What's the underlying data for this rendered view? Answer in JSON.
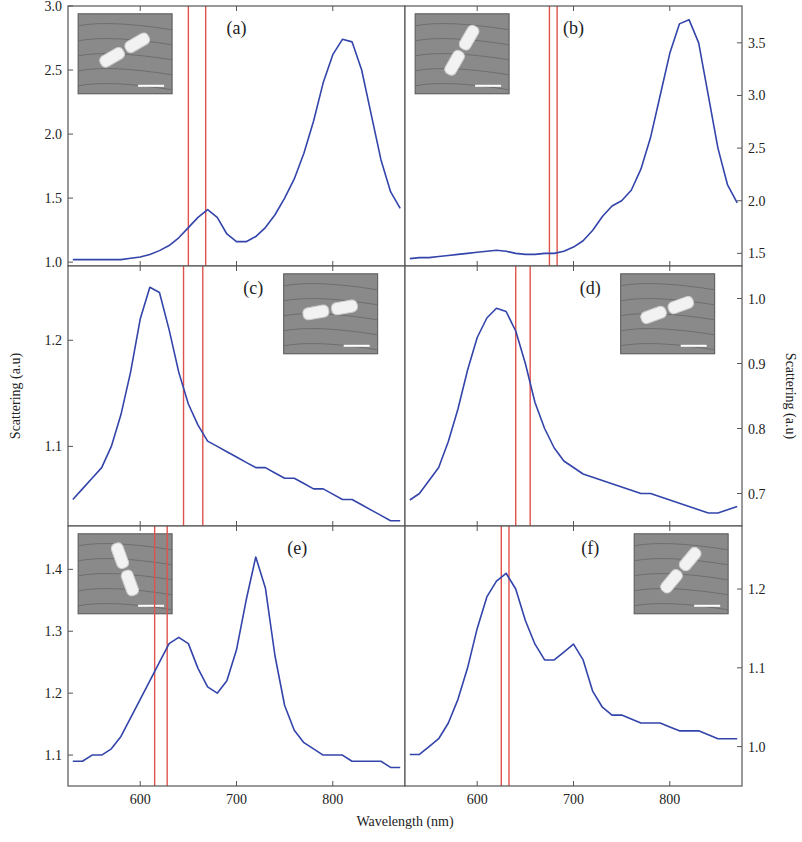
{
  "chart_data": [
    {
      "type": "line",
      "panel": "(a)",
      "grid": false,
      "tick_labels": "y",
      "xlim": [
        525,
        875
      ],
      "xticks": [
        600,
        700,
        800
      ],
      "ylim": [
        0.97,
        3.0
      ],
      "yticks": [
        {
          "value": 1,
          "label": "1.0"
        },
        1.5,
        {
          "value": 2,
          "label": "2.0"
        },
        2.5,
        {
          "value": 3,
          "label": "3.0"
        }
      ],
      "reference_lines": [
        650,
        668
      ],
      "x": [
        530,
        540,
        550,
        560,
        570,
        580,
        590,
        600,
        610,
        620,
        630,
        640,
        650,
        660,
        670,
        680,
        690,
        700,
        710,
        720,
        730,
        740,
        750,
        760,
        770,
        780,
        790,
        800,
        810,
        820,
        830,
        840,
        850,
        860,
        870
      ],
      "series": [
        {
          "color": "#3344aa",
          "values": [
            1.02,
            1.02,
            1.02,
            1.02,
            1.02,
            1.02,
            1.03,
            1.04,
            1.06,
            1.09,
            1.13,
            1.19,
            1.27,
            1.35,
            1.41,
            1.35,
            1.22,
            1.16,
            1.16,
            1.2,
            1.27,
            1.37,
            1.5,
            1.65,
            1.85,
            2.1,
            2.4,
            2.62,
            2.74,
            2.72,
            2.5,
            2.15,
            1.8,
            1.55,
            1.42
          ]
        }
      ]
    },
    {
      "type": "line",
      "panel": "(b)",
      "grid": false,
      "tick_labels": "y",
      "xlim": [
        525,
        875
      ],
      "xticks": [
        600,
        700,
        800
      ],
      "ylim": [
        1.38,
        3.85
      ],
      "yticks": [
        1.5,
        {
          "value": 2,
          "label": "2.0"
        },
        2.5,
        {
          "value": 3,
          "label": "3.0"
        },
        3.5
      ],
      "reference_lines": [
        675,
        683
      ],
      "x": [
        530,
        540,
        550,
        560,
        570,
        580,
        590,
        600,
        610,
        620,
        630,
        640,
        650,
        660,
        670,
        680,
        690,
        700,
        710,
        720,
        730,
        740,
        750,
        760,
        770,
        780,
        790,
        800,
        810,
        820,
        830,
        840,
        850,
        860,
        870
      ],
      "series": [
        {
          "color": "#3344aa",
          "values": [
            1.45,
            1.46,
            1.46,
            1.47,
            1.48,
            1.49,
            1.5,
            1.51,
            1.52,
            1.53,
            1.52,
            1.5,
            1.49,
            1.49,
            1.5,
            1.5,
            1.52,
            1.56,
            1.62,
            1.72,
            1.85,
            1.95,
            2.0,
            2.1,
            2.3,
            2.6,
            3.0,
            3.4,
            3.68,
            3.72,
            3.5,
            3.0,
            2.5,
            2.15,
            1.98
          ]
        }
      ]
    },
    {
      "type": "line",
      "panel": "(c)",
      "grid": false,
      "tick_labels": "y",
      "y_label": "Scattering (a.u)",
      "xlim": [
        525,
        875
      ],
      "xticks": [
        600,
        700,
        800
      ],
      "ylim": [
        1.025,
        1.27
      ],
      "yticks": [
        1.1,
        1.2
      ],
      "reference_lines": [
        645,
        665
      ],
      "x": [
        530,
        540,
        550,
        560,
        570,
        580,
        590,
        600,
        610,
        620,
        630,
        640,
        650,
        660,
        670,
        680,
        690,
        700,
        710,
        720,
        730,
        740,
        750,
        760,
        770,
        780,
        790,
        800,
        810,
        820,
        830,
        840,
        850,
        860,
        870
      ],
      "series": [
        {
          "color": "#3344aa",
          "values": [
            1.05,
            1.06,
            1.07,
            1.08,
            1.1,
            1.13,
            1.17,
            1.22,
            1.25,
            1.245,
            1.21,
            1.17,
            1.14,
            1.12,
            1.105,
            1.1,
            1.095,
            1.09,
            1.085,
            1.08,
            1.08,
            1.075,
            1.07,
            1.07,
            1.065,
            1.06,
            1.06,
            1.055,
            1.05,
            1.05,
            1.045,
            1.04,
            1.035,
            1.03,
            1.03
          ]
        }
      ]
    },
    {
      "type": "line",
      "panel": "(d)",
      "grid": false,
      "tick_labels": "y",
      "y_label": "Scattering (a.u)",
      "xlim": [
        525,
        875
      ],
      "xticks": [
        600,
        700,
        800
      ],
      "ylim": [
        0.65,
        1.05
      ],
      "yticks": [
        0.7,
        0.8,
        0.9,
        {
          "value": 1,
          "label": "1.0"
        }
      ],
      "reference_lines": [
        640,
        655
      ],
      "x": [
        530,
        540,
        550,
        560,
        570,
        580,
        590,
        600,
        610,
        620,
        630,
        640,
        650,
        660,
        670,
        680,
        690,
        700,
        710,
        720,
        730,
        740,
        750,
        760,
        770,
        780,
        790,
        800,
        810,
        820,
        830,
        840,
        850,
        860,
        870
      ],
      "series": [
        {
          "color": "#3344aa",
          "values": [
            0.69,
            0.7,
            0.72,
            0.74,
            0.78,
            0.83,
            0.89,
            0.94,
            0.97,
            0.985,
            0.98,
            0.95,
            0.9,
            0.84,
            0.8,
            0.77,
            0.75,
            0.74,
            0.73,
            0.725,
            0.72,
            0.715,
            0.71,
            0.705,
            0.7,
            0.7,
            0.695,
            0.69,
            0.685,
            0.68,
            0.675,
            0.67,
            0.67,
            0.675,
            0.68
          ]
        }
      ]
    },
    {
      "type": "line",
      "panel": "(e)",
      "grid": false,
      "x_label": "Wavelength (nm)",
      "xlim": [
        525,
        875
      ],
      "xticks": [
        600,
        700,
        800
      ],
      "ylim": [
        1.05,
        1.47
      ],
      "yticks": [
        1.1,
        1.2,
        1.3,
        1.4
      ],
      "reference_lines": [
        615,
        628
      ],
      "x": [
        530,
        540,
        550,
        560,
        570,
        580,
        590,
        600,
        610,
        620,
        630,
        640,
        650,
        660,
        670,
        680,
        690,
        700,
        710,
        720,
        730,
        740,
        750,
        760,
        770,
        780,
        790,
        800,
        810,
        820,
        830,
        840,
        850,
        860,
        870
      ],
      "series": [
        {
          "color": "#3344aa",
          "values": [
            1.09,
            1.09,
            1.1,
            1.1,
            1.11,
            1.13,
            1.16,
            1.19,
            1.22,
            1.25,
            1.28,
            1.29,
            1.28,
            1.24,
            1.21,
            1.2,
            1.22,
            1.27,
            1.35,
            1.42,
            1.37,
            1.26,
            1.18,
            1.14,
            1.12,
            1.11,
            1.1,
            1.1,
            1.1,
            1.09,
            1.09,
            1.09,
            1.09,
            1.08,
            1.08
          ]
        }
      ]
    },
    {
      "type": "line",
      "panel": "(f)",
      "grid": false,
      "xlim": [
        525,
        875
      ],
      "xticks": [
        600,
        700,
        800
      ],
      "ylim": [
        0.95,
        1.28
      ],
      "yticks": [
        {
          "value": 1,
          "label": "1.0"
        },
        1.1,
        1.2
      ],
      "reference_lines": [
        625,
        633
      ],
      "x": [
        530,
        540,
        550,
        560,
        570,
        580,
        590,
        600,
        610,
        620,
        630,
        640,
        650,
        660,
        670,
        680,
        690,
        700,
        710,
        720,
        730,
        740,
        750,
        760,
        770,
        780,
        790,
        800,
        810,
        820,
        830,
        840,
        850,
        860,
        870
      ],
      "series": [
        {
          "color": "#3344aa",
          "values": [
            0.99,
            0.99,
            1.0,
            1.01,
            1.03,
            1.06,
            1.1,
            1.15,
            1.19,
            1.21,
            1.22,
            1.2,
            1.16,
            1.13,
            1.11,
            1.11,
            1.12,
            1.13,
            1.11,
            1.07,
            1.05,
            1.04,
            1.04,
            1.035,
            1.03,
            1.03,
            1.03,
            1.025,
            1.02,
            1.02,
            1.02,
            1.015,
            1.01,
            1.01,
            1.01
          ]
        }
      ]
    }
  ]
}
